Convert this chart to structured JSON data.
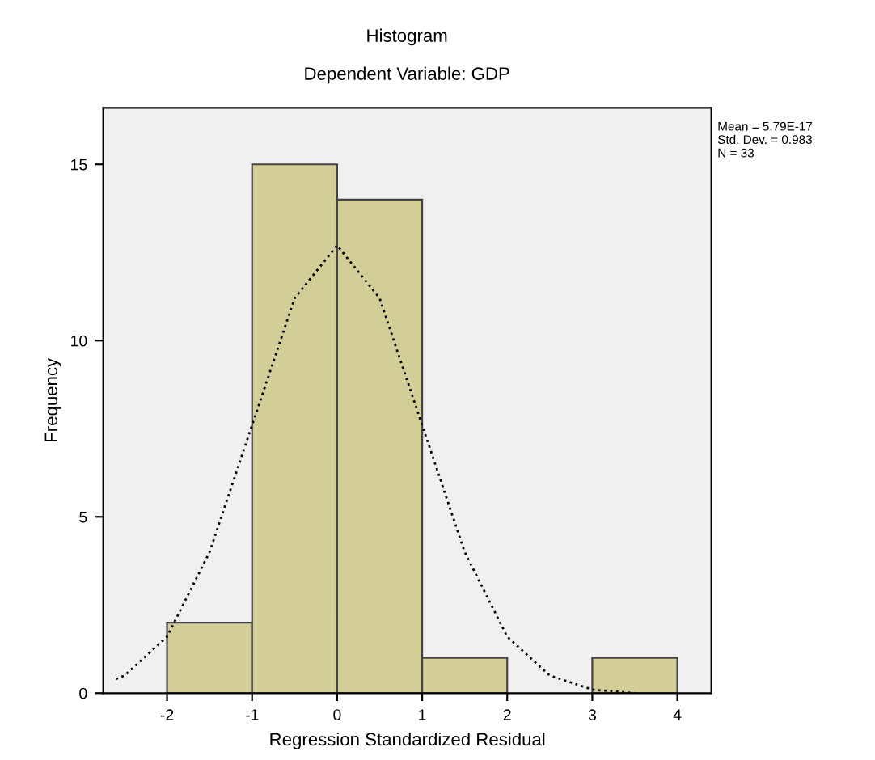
{
  "chart_data": {
    "type": "histogram",
    "title": "Histogram",
    "subtitle": "Dependent Variable: GDP",
    "xlabel": "Regression Standardized Residual",
    "ylabel": "Frequency",
    "series": [
      {
        "color": "#d3cd98",
        "bins": [
          -2,
          -1,
          0,
          1,
          2,
          3,
          4
        ],
        "values": [
          2,
          15,
          14,
          1,
          0,
          1
        ]
      },
      {
        "type": "line",
        "color": "#000000",
        "line_style": "dotted",
        "x": [
          -2.6,
          -2.5,
          -2,
          -1.5,
          -1,
          -0.5,
          0,
          0.5,
          1,
          1.5,
          2,
          2.5,
          3,
          3.5
        ],
        "values": [
          0.4,
          0.5,
          1.6,
          4.0,
          7.6,
          11.2,
          12.7,
          11.2,
          7.6,
          4.0,
          1.6,
          0.5,
          0.1,
          0.0
        ]
      }
    ],
    "xlim": [
      -2.75,
      4.4
    ],
    "ylim": [
      0,
      16.6
    ],
    "xticks": [
      -2,
      -1,
      0,
      1,
      2,
      3,
      4
    ],
    "yticks": [
      0,
      5,
      10,
      15
    ],
    "grid": false,
    "annotations": [
      "Mean = 5.79E-17\nStd. Dev. = 0.983\nN = 33"
    ]
  }
}
